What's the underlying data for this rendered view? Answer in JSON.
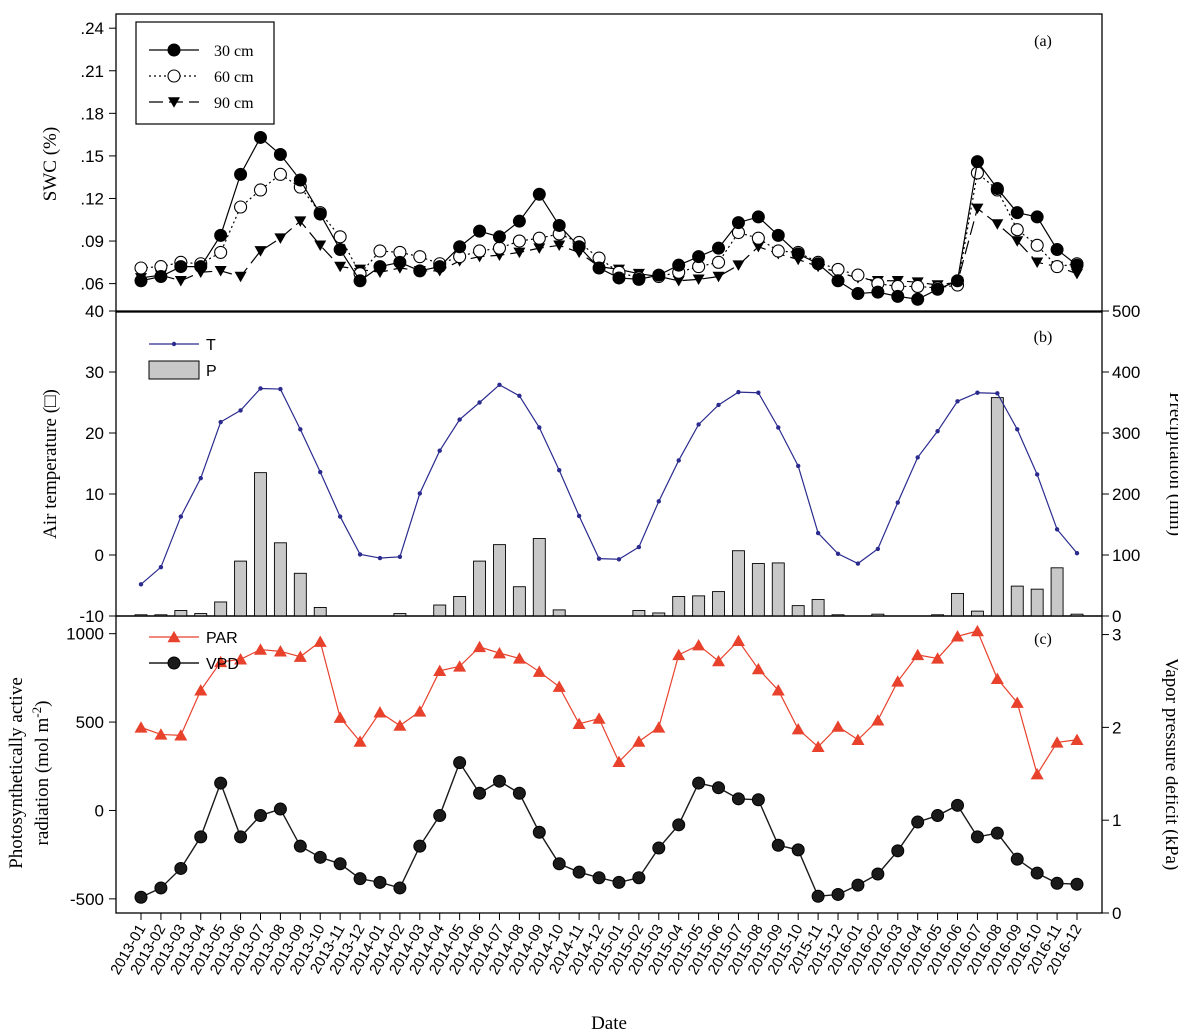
{
  "chart_data": [
    {
      "type": "line",
      "panel_label": "(a)",
      "ylabel": "SWC (%)",
      "y_tick_labels": [
        ".06",
        ".09",
        ".12",
        ".15",
        ".18",
        ".21",
        ".24"
      ],
      "y_ticks": [
        0.06,
        0.09,
        0.12,
        0.15,
        0.18,
        0.21,
        0.24
      ],
      "ylim": [
        0.04,
        0.25
      ],
      "legend_position": "top-left",
      "series": [
        {
          "name": "30 cm",
          "marker": "filled-circle",
          "line": "solid",
          "values": [
            0.062,
            0.065,
            0.072,
            0.072,
            0.094,
            0.137,
            0.163,
            0.151,
            0.133,
            0.109,
            0.084,
            0.062,
            0.072,
            0.075,
            0.069,
            0.072,
            0.086,
            0.097,
            0.093,
            0.104,
            0.123,
            0.101,
            0.086,
            0.071,
            0.064,
            0.063,
            0.066,
            0.073,
            0.079,
            0.085,
            0.103,
            0.107,
            0.094,
            0.081,
            0.074,
            0.062,
            0.053,
            0.054,
            0.051,
            0.049,
            0.056,
            0.062,
            0.146,
            0.127,
            0.11,
            0.107,
            0.084,
            0.073
          ]
        },
        {
          "name": "60 cm",
          "marker": "open-circle",
          "line": "dotted",
          "values": [
            0.071,
            0.072,
            0.075,
            0.074,
            0.082,
            0.114,
            0.126,
            0.137,
            0.128,
            0.11,
            0.093,
            0.067,
            0.083,
            0.082,
            0.079,
            0.074,
            0.079,
            0.083,
            0.085,
            0.09,
            0.092,
            0.095,
            0.089,
            0.078,
            0.068,
            0.064,
            0.065,
            0.068,
            0.072,
            0.075,
            0.096,
            0.092,
            0.083,
            0.082,
            0.075,
            0.07,
            0.066,
            0.06,
            0.058,
            0.058,
            0.057,
            0.059,
            0.138,
            0.126,
            0.098,
            0.087,
            0.072,
            0.074
          ]
        },
        {
          "name": "90 cm",
          "marker": "filled-triangle-down",
          "line": "dashed",
          "values": [
            0.064,
            0.066,
            0.062,
            0.068,
            0.069,
            0.065,
            0.083,
            0.092,
            0.104,
            0.087,
            0.072,
            0.07,
            0.068,
            0.071,
            0.069,
            0.069,
            0.076,
            0.079,
            0.08,
            0.082,
            0.085,
            0.087,
            0.082,
            0.072,
            0.07,
            0.067,
            0.065,
            0.062,
            0.063,
            0.065,
            0.073,
            0.086,
            0.081,
            0.077,
            0.072,
            0.068,
            0.064,
            0.062,
            0.062,
            0.061,
            0.059,
            0.061,
            0.113,
            0.102,
            0.09,
            0.075,
            0.072,
            0.067
          ]
        }
      ]
    },
    {
      "type": "line+bar",
      "panel_label": "(b)",
      "ylabel_left": "Air temperature (□)",
      "ylabel_right": "Precipitation (mm)",
      "y_left_ticks": [
        -10,
        0,
        10,
        20,
        30,
        40
      ],
      "ylim_left": [
        -10,
        40
      ],
      "y_right_ticks": [
        0,
        100,
        200,
        300,
        400,
        500
      ],
      "ylim_right": [
        0,
        500
      ],
      "legend_position": "top-left",
      "series": [
        {
          "name": "T",
          "axis": "left",
          "type": "line",
          "color": "#2b2b8f",
          "values": [
            -4.8,
            -2,
            6.3,
            12.6,
            21.8,
            23.7,
            27.3,
            27.2,
            20.6,
            13.6,
            6.3,
            0.1,
            -0.5,
            -0.3,
            10.1,
            17.1,
            22.2,
            25,
            27.9,
            26.1,
            20.9,
            13.9,
            6.4,
            -0.6,
            -0.7,
            1.3,
            8.8,
            15.5,
            21.4,
            24.6,
            26.7,
            26.6,
            20.9,
            14.6,
            3.6,
            0.2,
            -1.4,
            1,
            8.6,
            16,
            20.3,
            25.2,
            26.6,
            26.5,
            20.6,
            13.2,
            4.2,
            0.3
          ]
        },
        {
          "name": "P",
          "axis": "right",
          "type": "bar",
          "color": "#c8c8c8",
          "values": [
            2,
            2,
            9,
            4,
            23,
            90,
            235,
            120,
            70,
            14,
            0,
            0,
            0,
            4,
            0,
            18,
            32,
            90,
            117,
            48,
            127,
            10,
            0,
            0,
            0,
            9,
            5,
            32,
            33,
            40,
            107,
            86,
            87,
            17,
            27,
            2,
            0,
            3,
            0,
            0,
            2,
            37,
            8,
            358,
            49,
            44,
            79,
            3
          ]
        }
      ]
    },
    {
      "type": "line",
      "panel_label": "(c)",
      "ylabel_left_line1": "Photosynthetically active",
      "ylabel_left_line2": "radiation (mol m",
      "ylabel_left_sup": "-2",
      "ylabel_left_end": ")",
      "ylabel_right": "Vapor pressure deficit (kPa)",
      "y_left_ticks": [
        -500,
        0,
        500,
        1000
      ],
      "ylim_left": [
        -580,
        1100
      ],
      "y_right_ticks": [
        0,
        1,
        2,
        3
      ],
      "ylim_right": [
        0,
        3.2
      ],
      "legend_position": "top-left",
      "series": [
        {
          "name": "PAR",
          "axis": "left",
          "marker": "filled-triangle-up",
          "color": "#e8412c",
          "values": [
            470,
            430,
            425,
            680,
            840,
            855,
            910,
            900,
            870,
            955,
            525,
            390,
            555,
            480,
            560,
            790,
            815,
            925,
            890,
            860,
            785,
            700,
            490,
            520,
            275,
            390,
            470,
            880,
            935,
            845,
            960,
            800,
            680,
            460,
            360,
            475,
            400,
            510,
            730,
            880,
            860,
            985,
            1015,
            745,
            610,
            205,
            385,
            400
          ]
        },
        {
          "name": "VPD",
          "axis": "right",
          "marker": "filled-circle",
          "color": "#1a1a1a",
          "values": [
            0.17,
            0.27,
            0.48,
            0.82,
            1.4,
            0.82,
            1.05,
            1.12,
            0.72,
            0.6,
            0.53,
            0.37,
            0.33,
            0.27,
            0.72,
            1.05,
            1.62,
            1.29,
            1.42,
            1.29,
            0.87,
            0.53,
            0.44,
            0.38,
            0.33,
            0.38,
            0.7,
            0.95,
            1.4,
            1.35,
            1.23,
            1.22,
            0.73,
            0.68,
            0.18,
            0.2,
            0.3,
            0.42,
            0.67,
            0.98,
            1.05,
            1.16,
            0.82,
            0.86,
            0.58,
            0.43,
            0.32,
            0.31
          ]
        }
      ]
    }
  ],
  "x_categories": [
    "2013-01",
    "2013-02",
    "2013-03",
    "2013-04",
    "2013-05",
    "2013-06",
    "2013-07",
    "2013-08",
    "2013-09",
    "2013-10",
    "2013-11",
    "2013-12",
    "2014-01",
    "2014-02",
    "2014-03",
    "2014-04",
    "2014-05",
    "2014-06",
    "2014-07",
    "2014-08",
    "2014-09",
    "2014-10",
    "2014-11",
    "2014-12",
    "2015-01",
    "2015-02",
    "2015-03",
    "2015-04",
    "2015-05",
    "2015-06",
    "2015-07",
    "2015-08",
    "2015-09",
    "2015-10",
    "2015-11",
    "2015-12",
    "2016-01",
    "2016-02",
    "2016-03",
    "2016-04",
    "2016-05",
    "2016-06",
    "2016-07",
    "2016-08",
    "2016-09",
    "2016-10",
    "2016-11",
    "2016-12"
  ],
  "xlabel": "Date"
}
